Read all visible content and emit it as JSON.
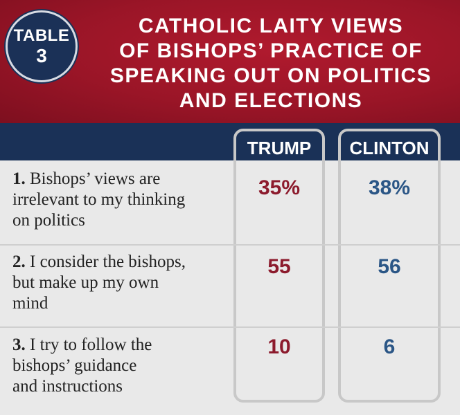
{
  "badge": {
    "label": "TABLE",
    "number": "3"
  },
  "title_lines": [
    "CATHOLIC LAITY VIEWS",
    "OF BISHOPS’ PRACTICE OF",
    "SPEAKING OUT ON POLITICS",
    "AND ELECTIONS"
  ],
  "columns": {
    "trump": "TRUMP",
    "clinton": "CLINTON"
  },
  "rows": [
    {
      "num": "1.",
      "text": "Bishops’ views are irrelevant to my thinking on politics",
      "line1": "Bishops’ views are",
      "line2": "irrelevant to my thinking",
      "line3": "on politics",
      "trump": "35%",
      "clinton": "38%"
    },
    {
      "num": "2.",
      "text": "I consider the bishops, but make up my own mind",
      "line1": "I consider the bishops,",
      "line2": "but make up my own",
      "line3": "mind",
      "trump": "55",
      "clinton": "56"
    },
    {
      "num": "3.",
      "text": "I try to follow the bishops’ guidance and instructions",
      "line1": "I try to follow the",
      "line2": "bishops’ guidance",
      "line3": "and instructions",
      "trump": "10",
      "clinton": "6"
    }
  ],
  "colors": {
    "header_red": "#9a1527",
    "navy": "#1a3157",
    "trump_red": "#8c1b2d",
    "clinton_blue": "#2b5686"
  }
}
